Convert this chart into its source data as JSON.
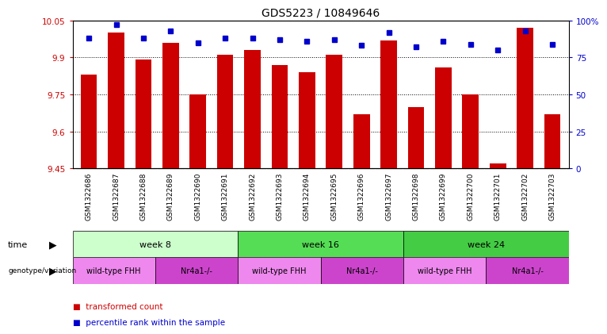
{
  "title": "GDS5223 / 10849646",
  "samples": [
    "GSM1322686",
    "GSM1322687",
    "GSM1322688",
    "GSM1322689",
    "GSM1322690",
    "GSM1322691",
    "GSM1322692",
    "GSM1322693",
    "GSM1322694",
    "GSM1322695",
    "GSM1322696",
    "GSM1322697",
    "GSM1322698",
    "GSM1322699",
    "GSM1322700",
    "GSM1322701",
    "GSM1322702",
    "GSM1322703"
  ],
  "transformed_counts": [
    9.83,
    10.0,
    9.89,
    9.96,
    9.75,
    9.91,
    9.93,
    9.87,
    9.84,
    9.91,
    9.67,
    9.97,
    9.7,
    9.86,
    9.75,
    9.47,
    10.02,
    9.67
  ],
  "percentile_ranks": [
    88,
    97,
    88,
    93,
    85,
    88,
    88,
    87,
    86,
    87,
    83,
    92,
    82,
    86,
    84,
    80,
    93,
    84
  ],
  "y_min": 9.45,
  "y_max": 10.05,
  "y_ticks": [
    9.45,
    9.6,
    9.75,
    9.9,
    10.05
  ],
  "y_tick_labels": [
    "9.45",
    "9.6",
    "9.75",
    "9.9",
    "10.05"
  ],
  "right_y_ticks": [
    0,
    25,
    50,
    75,
    100
  ],
  "right_y_tick_labels": [
    "0",
    "25",
    "50",
    "75",
    "100%"
  ],
  "bar_color": "#cc0000",
  "dot_color": "#0000cc",
  "time_groups": [
    {
      "label": "week 8",
      "start": 0,
      "end": 5,
      "color": "#ccffcc"
    },
    {
      "label": "week 16",
      "start": 6,
      "end": 11,
      "color": "#55dd55"
    },
    {
      "label": "week 24",
      "start": 12,
      "end": 17,
      "color": "#44cc44"
    }
  ],
  "genotype_groups": [
    {
      "label": "wild-type FHH",
      "start": 0,
      "end": 2,
      "color": "#ee88ee"
    },
    {
      "label": "Nr4a1-/-",
      "start": 3,
      "end": 5,
      "color": "#cc44cc"
    },
    {
      "label": "wild-type FHH",
      "start": 6,
      "end": 8,
      "color": "#ee88ee"
    },
    {
      "label": "Nr4a1-/-",
      "start": 9,
      "end": 11,
      "color": "#cc44cc"
    },
    {
      "label": "wild-type FHH",
      "start": 12,
      "end": 14,
      "color": "#ee88ee"
    },
    {
      "label": "Nr4a1-/-",
      "start": 15,
      "end": 17,
      "color": "#cc44cc"
    }
  ],
  "background_color": "#ffffff",
  "title_fontsize": 10,
  "tick_fontsize": 7.5,
  "annotation_fontsize": 8,
  "sample_fontsize": 6.5,
  "legend_fontsize": 7.5
}
